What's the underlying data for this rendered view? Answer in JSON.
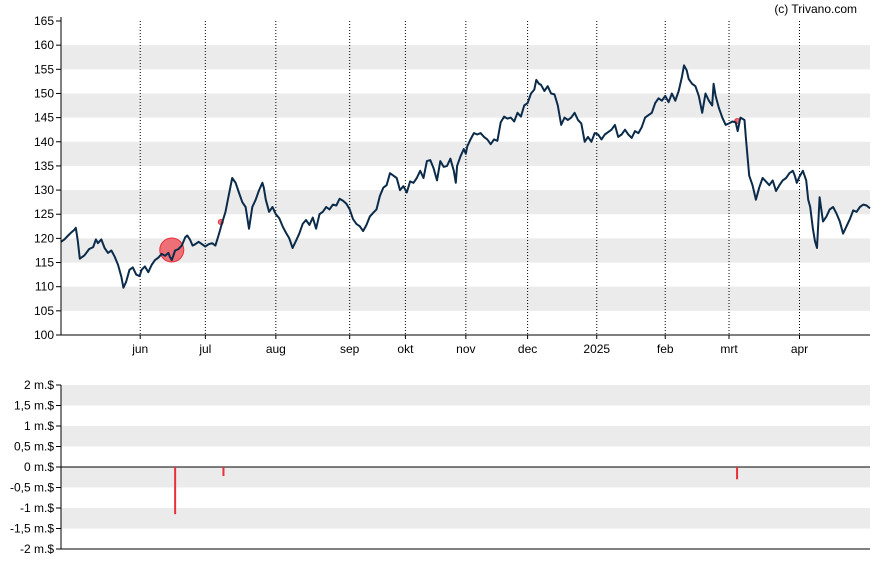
{
  "copyright": "(c) Trivano.com",
  "colors": {
    "band": "#ebebeb",
    "line": "#0b2b4a",
    "marker": "#e8303a",
    "marker_fill": "#ee7077",
    "axis": "#000000"
  },
  "chart_data": [
    {
      "type": "line",
      "title": "",
      "ylim": [
        100,
        165
      ],
      "y_ticks": [
        "100",
        "105",
        "110",
        "115",
        "120",
        "125",
        "130",
        "135",
        "140",
        "145",
        "150",
        "155",
        "160",
        "165"
      ],
      "month_labels": [
        "jun",
        "jul",
        "aug",
        "sep",
        "okt",
        "nov",
        "dec",
        "2025",
        "feb",
        "mrt",
        "apr"
      ],
      "month_ticks": [
        1.18,
        2.15,
        3.2,
        4.3,
        5.13,
        6.03,
        6.95,
        7.98,
        9.0,
        9.95,
        11.0
      ],
      "x_range": [
        0,
        12.05
      ],
      "grid": "alternating bands with dotted vertical month lines",
      "series": [
        {
          "points": [
            [
              0.0,
              119.3
            ],
            [
              0.05,
              119.8
            ],
            [
              0.1,
              120.5
            ],
            [
              0.15,
              121.2
            ],
            [
              0.2,
              121.8
            ],
            [
              0.22,
              122.2
            ],
            [
              0.25,
              119.5
            ],
            [
              0.28,
              115.8
            ],
            [
              0.35,
              116.5
            ],
            [
              0.42,
              117.8
            ],
            [
              0.48,
              118.2
            ],
            [
              0.52,
              119.8
            ],
            [
              0.55,
              119.0
            ],
            [
              0.6,
              119.8
            ],
            [
              0.65,
              118.0
            ],
            [
              0.7,
              117.0
            ],
            [
              0.75,
              117.5
            ],
            [
              0.8,
              116.2
            ],
            [
              0.85,
              114.5
            ],
            [
              0.9,
              112.0
            ],
            [
              0.93,
              109.8
            ],
            [
              0.97,
              111.0
            ],
            [
              1.02,
              113.5
            ],
            [
              1.07,
              114.0
            ],
            [
              1.12,
              112.5
            ],
            [
              1.17,
              112.2
            ],
            [
              1.2,
              113.5
            ],
            [
              1.25,
              114.2
            ],
            [
              1.3,
              113.0
            ],
            [
              1.35,
              114.5
            ],
            [
              1.4,
              115.5
            ],
            [
              1.45,
              116.0
            ],
            [
              1.5,
              116.8
            ],
            [
              1.55,
              116.4
            ],
            [
              1.6,
              117.0
            ],
            [
              1.62,
              116.2
            ],
            [
              1.65,
              115.5
            ],
            [
              1.7,
              117.5
            ],
            [
              1.75,
              117.8
            ],
            [
              1.8,
              118.5
            ],
            [
              1.85,
              120.2
            ],
            [
              1.88,
              120.6
            ],
            [
              1.92,
              119.8
            ],
            [
              1.96,
              118.5
            ],
            [
              2.0,
              118.8
            ],
            [
              2.05,
              119.3
            ],
            [
              2.1,
              118.8
            ],
            [
              2.15,
              118.3
            ],
            [
              2.2,
              118.8
            ],
            [
              2.25,
              119.0
            ],
            [
              2.3,
              118.5
            ],
            [
              2.35,
              120.8
            ],
            [
              2.4,
              123.2
            ],
            [
              2.45,
              125.5
            ],
            [
              2.5,
              129.0
            ],
            [
              2.55,
              132.5
            ],
            [
              2.6,
              131.5
            ],
            [
              2.65,
              129.5
            ],
            [
              2.7,
              127.5
            ],
            [
              2.75,
              126.5
            ],
            [
              2.8,
              122.0
            ],
            [
              2.85,
              126.5
            ],
            [
              2.9,
              128.0
            ],
            [
              2.95,
              130.0
            ],
            [
              3.0,
              131.5
            ],
            [
              3.02,
              130.5
            ],
            [
              3.05,
              128.0
            ],
            [
              3.1,
              125.5
            ],
            [
              3.15,
              126.5
            ],
            [
              3.2,
              125.0
            ],
            [
              3.25,
              124.2
            ],
            [
              3.3,
              122.5
            ],
            [
              3.35,
              121.2
            ],
            [
              3.4,
              120.0
            ],
            [
              3.45,
              118.0
            ],
            [
              3.5,
              119.5
            ],
            [
              3.55,
              121.0
            ],
            [
              3.6,
              123.0
            ],
            [
              3.65,
              123.8
            ],
            [
              3.7,
              122.8
            ],
            [
              3.75,
              124.3
            ],
            [
              3.8,
              122.0
            ],
            [
              3.85,
              125.0
            ],
            [
              3.9,
              125.5
            ],
            [
              3.95,
              126.5
            ],
            [
              4.0,
              126.0
            ],
            [
              4.05,
              127.0
            ],
            [
              4.1,
              126.8
            ],
            [
              4.15,
              128.2
            ],
            [
              4.2,
              127.8
            ],
            [
              4.25,
              127.2
            ],
            [
              4.3,
              126.0
            ],
            [
              4.35,
              124.0
            ],
            [
              4.4,
              123.0
            ],
            [
              4.45,
              122.5
            ],
            [
              4.5,
              121.5
            ],
            [
              4.55,
              122.8
            ],
            [
              4.6,
              124.5
            ],
            [
              4.65,
              125.3
            ],
            [
              4.7,
              126.0
            ],
            [
              4.75,
              128.8
            ],
            [
              4.8,
              130.5
            ],
            [
              4.85,
              131.0
            ],
            [
              4.9,
              133.5
            ],
            [
              4.95,
              133.0
            ],
            [
              5.0,
              132.5
            ],
            [
              5.05,
              130.0
            ],
            [
              5.1,
              130.8
            ],
            [
              5.15,
              129.5
            ],
            [
              5.2,
              131.8
            ],
            [
              5.25,
              131.5
            ],
            [
              5.3,
              132.5
            ],
            [
              5.35,
              134.0
            ],
            [
              5.4,
              132.5
            ],
            [
              5.45,
              136.0
            ],
            [
              5.5,
              136.2
            ],
            [
              5.55,
              134.5
            ],
            [
              5.6,
              132.0
            ],
            [
              5.65,
              136.0
            ],
            [
              5.7,
              134.8
            ],
            [
              5.75,
              135.0
            ],
            [
              5.8,
              136.5
            ],
            [
              5.85,
              134.0
            ],
            [
              5.88,
              131.5
            ],
            [
              5.9,
              135.0
            ],
            [
              5.95,
              137.0
            ],
            [
              6.0,
              138.5
            ],
            [
              6.03,
              137.5
            ],
            [
              6.05,
              139.0
            ],
            [
              6.1,
              140.5
            ],
            [
              6.15,
              141.8
            ],
            [
              6.2,
              141.5
            ],
            [
              6.25,
              141.8
            ],
            [
              6.3,
              141.0
            ],
            [
              6.35,
              140.5
            ],
            [
              6.4,
              139.5
            ],
            [
              6.45,
              140.5
            ],
            [
              6.5,
              140.2
            ],
            [
              6.55,
              144.0
            ],
            [
              6.6,
              145.2
            ],
            [
              6.65,
              144.8
            ],
            [
              6.7,
              145.0
            ],
            [
              6.75,
              144.2
            ],
            [
              6.8,
              146.0
            ],
            [
              6.85,
              145.2
            ],
            [
              6.9,
              147.5
            ],
            [
              6.95,
              148.0
            ],
            [
              7.0,
              150.0
            ],
            [
              7.05,
              150.8
            ],
            [
              7.08,
              152.8
            ],
            [
              7.12,
              152.0
            ],
            [
              7.15,
              151.8
            ],
            [
              7.2,
              150.5
            ],
            [
              7.25,
              151.5
            ],
            [
              7.3,
              150.0
            ],
            [
              7.35,
              149.8
            ],
            [
              7.4,
              147.5
            ],
            [
              7.45,
              143.5
            ],
            [
              7.5,
              145.0
            ],
            [
              7.55,
              144.5
            ],
            [
              7.6,
              145.0
            ],
            [
              7.65,
              146.0
            ],
            [
              7.7,
              144.5
            ],
            [
              7.75,
              143.8
            ],
            [
              7.8,
              140.0
            ],
            [
              7.85,
              141.0
            ],
            [
              7.9,
              140.0
            ],
            [
              7.95,
              141.8
            ],
            [
              8.0,
              141.5
            ],
            [
              8.05,
              140.5
            ],
            [
              8.1,
              141.5
            ],
            [
              8.15,
              142.0
            ],
            [
              8.2,
              142.5
            ],
            [
              8.25,
              143.5
            ],
            [
              8.3,
              141.0
            ],
            [
              8.35,
              141.5
            ],
            [
              8.4,
              142.5
            ],
            [
              8.45,
              141.5
            ],
            [
              8.5,
              140.8
            ],
            [
              8.55,
              142.2
            ],
            [
              8.6,
              141.8
            ],
            [
              8.65,
              143.0
            ],
            [
              8.7,
              145.0
            ],
            [
              8.75,
              145.5
            ],
            [
              8.8,
              146.0
            ],
            [
              8.85,
              148.0
            ],
            [
              8.9,
              149.0
            ],
            [
              8.95,
              148.5
            ],
            [
              9.0,
              149.5
            ],
            [
              9.05,
              148.2
            ],
            [
              9.1,
              150.0
            ],
            [
              9.15,
              148.5
            ],
            [
              9.2,
              150.5
            ],
            [
              9.25,
              153.5
            ],
            [
              9.28,
              155.8
            ],
            [
              9.32,
              154.8
            ],
            [
              9.35,
              153.0
            ],
            [
              9.4,
              152.0
            ],
            [
              9.45,
              151.5
            ],
            [
              9.5,
              149.5
            ],
            [
              9.55,
              146.0
            ],
            [
              9.6,
              150.0
            ],
            [
              9.65,
              148.5
            ],
            [
              9.7,
              147.5
            ],
            [
              9.72,
              152.0
            ],
            [
              9.75,
              149.5
            ],
            [
              9.8,
              147.0
            ],
            [
              9.85,
              145.0
            ],
            [
              9.9,
              143.5
            ],
            [
              9.95,
              143.8
            ],
            [
              10.0,
              144.2
            ],
            [
              10.05,
              144.0
            ],
            [
              10.08,
              142.2
            ],
            [
              10.12,
              145.0
            ],
            [
              10.18,
              144.5
            ],
            [
              10.2,
              141.0
            ],
            [
              10.25,
              133.0
            ],
            [
              10.3,
              131.0
            ],
            [
              10.35,
              128.0
            ],
            [
              10.4,
              130.5
            ],
            [
              10.45,
              132.5
            ],
            [
              10.5,
              131.8
            ],
            [
              10.55,
              131.0
            ],
            [
              10.6,
              132.0
            ],
            [
              10.65,
              129.8
            ],
            [
              10.7,
              131.0
            ],
            [
              10.75,
              132.0
            ],
            [
              10.8,
              132.5
            ],
            [
              10.85,
              133.5
            ],
            [
              10.9,
              134.0
            ],
            [
              10.93,
              133.0
            ],
            [
              10.96,
              131.5
            ],
            [
              11.0,
              132.8
            ],
            [
              11.05,
              134.0
            ],
            [
              11.1,
              132.0
            ],
            [
              11.13,
              128.0
            ],
            [
              11.16,
              126.5
            ],
            [
              11.2,
              122.0
            ],
            [
              11.23,
              119.5
            ],
            [
              11.26,
              118.0
            ],
            [
              11.3,
              128.5
            ],
            [
              11.35,
              123.5
            ],
            [
              11.4,
              124.5
            ],
            [
              11.45,
              126.0
            ],
            [
              11.5,
              126.5
            ],
            [
              11.55,
              125.2
            ],
            [
              11.6,
              123.5
            ],
            [
              11.65,
              121.0
            ],
            [
              11.7,
              122.5
            ],
            [
              11.75,
              124.0
            ],
            [
              11.8,
              125.8
            ],
            [
              11.85,
              125.5
            ],
            [
              11.9,
              126.5
            ],
            [
              11.95,
              127.0
            ],
            [
              12.0,
              126.8
            ],
            [
              12.05,
              126.2
            ]
          ],
          "markers": [
            {
              "x": 1.65,
              "y": 117.6,
              "size": "large"
            },
            {
              "x": 2.38,
              "y": 123.4,
              "size": "small"
            },
            {
              "x": 10.07,
              "y": 144.3,
              "size": "small"
            }
          ]
        }
      ]
    },
    {
      "type": "bar",
      "title": "",
      "ylim": [
        -2,
        2
      ],
      "y_ticks": [
        "-2 m.$",
        "-1,5 m.$",
        "-1 m.$",
        "-0,5 m.$",
        "0 m.$",
        "0,5 m.$",
        "1 m.$",
        "1,5 m.$",
        "2 m.$"
      ],
      "x_range": [
        0,
        12.05
      ],
      "series": [
        {
          "points": [
            [
              1.7,
              -1.15
            ],
            [
              2.42,
              -0.22
            ],
            [
              10.07,
              -0.3
            ]
          ]
        }
      ]
    }
  ]
}
